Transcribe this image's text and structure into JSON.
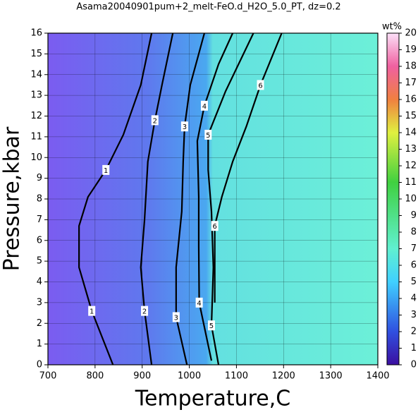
{
  "chart_data": {
    "type": "contour",
    "title": "Asama20040901pum+2_melt-FeO.d_H2O_5.0_PT, dz=0.2",
    "xlabel": "Temperature,C",
    "ylabel": "Pressure,kbar",
    "xlim": [
      700,
      1400
    ],
    "xticks": [
      700,
      800,
      900,
      1000,
      1100,
      1200,
      1300,
      1400
    ],
    "ylim": [
      0,
      16
    ],
    "yticks": [
      0,
      1,
      2,
      3,
      4,
      5,
      6,
      7,
      8,
      9,
      10,
      11,
      12,
      13,
      14,
      15,
      16
    ],
    "grid": true,
    "colorbar": {
      "label": "wt%",
      "zlim": [
        0,
        20
      ],
      "zticks": [
        0,
        1,
        2,
        3,
        4,
        5,
        6,
        7,
        8,
        9,
        10,
        11,
        12,
        13,
        14,
        15,
        16,
        17,
        18,
        19,
        20
      ]
    },
    "contours": [
      {
        "level": 1,
        "x": [
          838,
          793,
          766,
          766,
          785,
          823,
          860,
          897,
          920
        ],
        "y": [
          0,
          2.6,
          4.7,
          6.7,
          8.1,
          9.4,
          11.1,
          13.5,
          16
        ]
      },
      {
        "level": 2,
        "x": [
          920,
          905,
          897,
          905,
          912,
          927,
          942,
          965
        ],
        "y": [
          0,
          2.6,
          4.7,
          7,
          9.8,
          11.8,
          13.5,
          16
        ]
      },
      {
        "level": 3,
        "x": [
          995,
          972,
          972,
          984,
          987,
          990,
          1002,
          1032
        ],
        "y": [
          0,
          2.3,
          4.7,
          7.4,
          9.8,
          11.5,
          13.5,
          16
        ]
      },
      {
        "level": 4,
        "x": [
          1047,
          1021,
          1020,
          1020,
          1017,
          1032,
          1062,
          1092
        ],
        "y": [
          0.2,
          3,
          5.7,
          8.1,
          10.8,
          12.5,
          14.5,
          16
        ]
      },
      {
        "level": 5,
        "x": [
          1062,
          1047,
          1051,
          1047,
          1040,
          1040,
          1077,
          1136
        ],
        "y": [
          0,
          1.9,
          4.7,
          7.4,
          9.4,
          11.1,
          13.2,
          16
        ]
      },
      {
        "level": 6,
        "x": [
          1054,
          1054,
          1069,
          1092,
          1121,
          1151,
          1196
        ],
        "y": [
          3,
          6.7,
          8.1,
          9.8,
          11.5,
          13.5,
          16
        ]
      }
    ]
  }
}
